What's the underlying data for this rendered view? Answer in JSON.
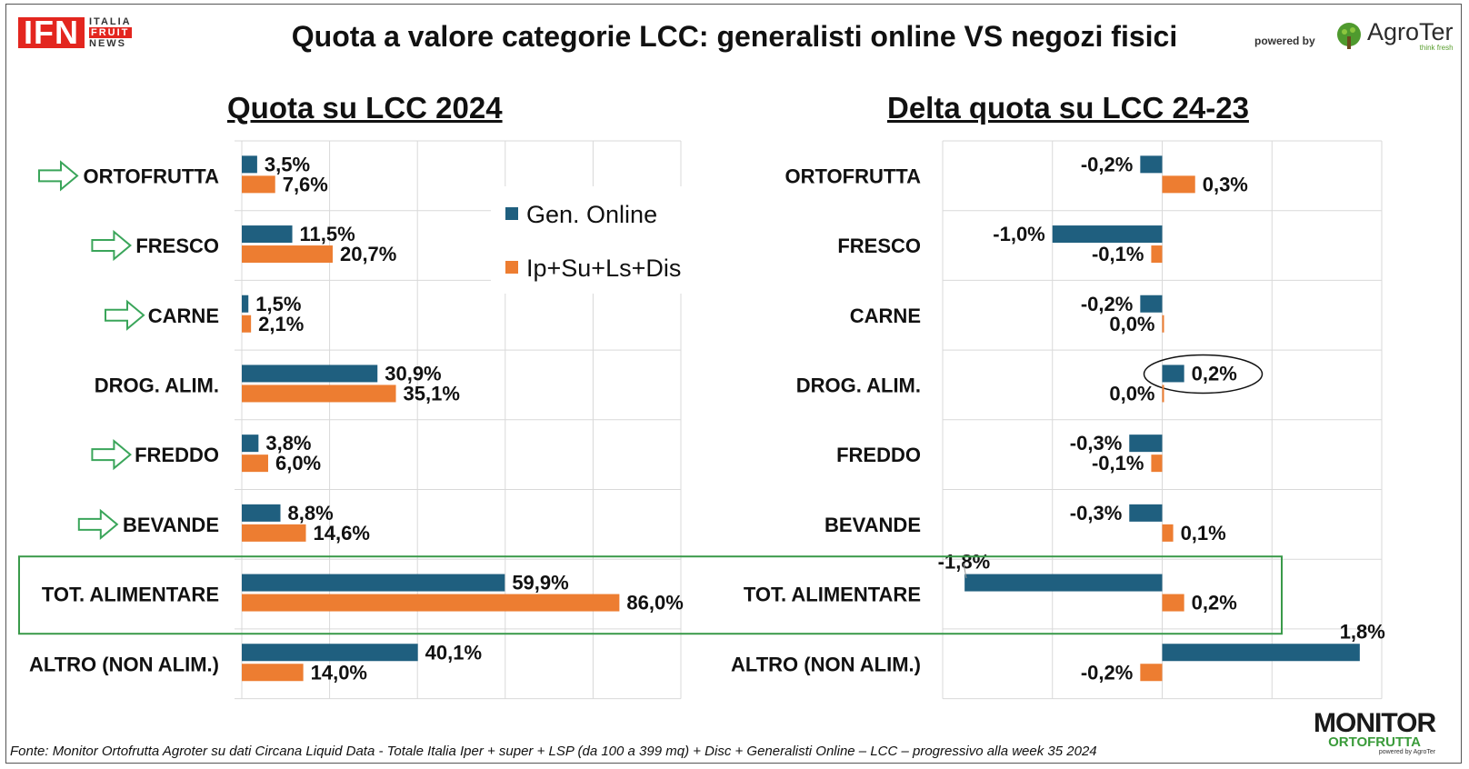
{
  "brand": {
    "ifn_main": "IFN",
    "ifn_lines": [
      "ITALIA",
      "FRUIT",
      "NEWS"
    ],
    "powered_by": "powered by",
    "agroter": "AgroTer",
    "agroter_tag": "think fresh",
    "monitor_top": "MONITOR",
    "monitor_bottom": "ORTOFRUTTA",
    "monitor_small": "powered by AgroTer"
  },
  "title": "Quota a valore categorie LCC: generalisti online VS negozi fisici",
  "footer": "Fonte: Monitor Ortofrutta Agroter su dati Circana Liquid Data - Totale Italia Iper + super + LSP (da 100 a 399 mq) + Disc + Generalisti Online – LCC – progressivo alla week 35 2024",
  "colors": {
    "online": "#1f5f7f",
    "physical": "#ed7d31",
    "arrow": "#3aa55a",
    "highlight": "#3a9a4a",
    "grid": "#d9d9d9"
  },
  "chart_data": [
    {
      "type": "bar",
      "orientation": "horizontal",
      "title": "Quota su LCC 2024",
      "categories": [
        "ORTOFRUTTA",
        "FRESCO",
        "CARNE",
        "DROG. ALIM.",
        "FREDDO",
        "BEVANDE",
        "TOT. ALIMENTARE",
        "ALTRO (NON ALIM.)"
      ],
      "series": [
        {
          "name": "Gen. Online",
          "values": [
            3.5,
            11.5,
            1.5,
            30.9,
            3.8,
            8.8,
            59.9,
            40.1
          ],
          "labels": [
            "3,5%",
            "11,5%",
            "1,5%",
            "30,9%",
            "3,8%",
            "8,8%",
            "59,9%",
            "40,1%"
          ]
        },
        {
          "name": "Ip+Su+Ls+Dis",
          "values": [
            7.6,
            20.7,
            2.1,
            35.1,
            6.0,
            14.6,
            86.0,
            14.0
          ],
          "labels": [
            "7,6%",
            "20,7%",
            "2,1%",
            "35,1%",
            "6,0%",
            "14,6%",
            "86,0%",
            "14,0%"
          ]
        }
      ],
      "xlim": [
        0,
        100
      ],
      "arrows_on": [
        "ORTOFRUTTA",
        "FRESCO",
        "CARNE",
        "FREDDO",
        "BEVANDE"
      ],
      "legend": [
        "Gen. Online",
        "Ip+Su+Ls+Dis"
      ]
    },
    {
      "type": "bar",
      "orientation": "horizontal",
      "title": "Delta quota su LCC 24-23",
      "categories": [
        "ORTOFRUTTA",
        "FRESCO",
        "CARNE",
        "DROG. ALIM.",
        "FREDDO",
        "BEVANDE",
        "TOT. ALIMENTARE",
        "ALTRO (NON ALIM.)"
      ],
      "series": [
        {
          "name": "Gen. Online",
          "values": [
            -0.2,
            -1.0,
            -0.2,
            0.2,
            -0.3,
            -0.3,
            -1.8,
            1.8
          ],
          "labels": [
            "-0,2%",
            "-1,0%",
            "-0,2%",
            "0,2%",
            "-0,3%",
            "-0,3%",
            "-1,8%",
            "1,8%"
          ]
        },
        {
          "name": "Ip+Su+Ls+Dis",
          "values": [
            0.3,
            -0.1,
            0.0,
            0.0,
            -0.1,
            0.1,
            0.2,
            -0.2
          ],
          "labels": [
            "0,3%",
            "-0,1%",
            "0,0%",
            "0,0%",
            "-0,1%",
            "0,1%",
            "0,2%",
            "-0,2%"
          ]
        }
      ],
      "xlim": [
        -2,
        2
      ],
      "circled_label": "0,2%"
    }
  ]
}
